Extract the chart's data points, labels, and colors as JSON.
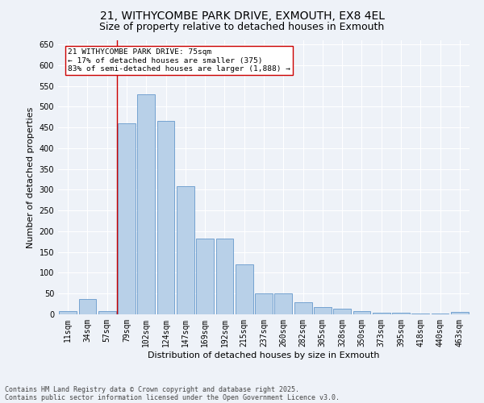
{
  "title": "21, WITHYCOMBE PARK DRIVE, EXMOUTH, EX8 4EL",
  "subtitle": "Size of property relative to detached houses in Exmouth",
  "xlabel": "Distribution of detached houses by size in Exmouth",
  "ylabel": "Number of detached properties",
  "categories": [
    "11sqm",
    "34sqm",
    "57sqm",
    "79sqm",
    "102sqm",
    "124sqm",
    "147sqm",
    "169sqm",
    "192sqm",
    "215sqm",
    "237sqm",
    "260sqm",
    "282sqm",
    "305sqm",
    "328sqm",
    "350sqm",
    "373sqm",
    "395sqm",
    "418sqm",
    "440sqm",
    "463sqm"
  ],
  "values": [
    7,
    37,
    8,
    461,
    530,
    466,
    308,
    183,
    183,
    120,
    50,
    50,
    30,
    18,
    14,
    8,
    3,
    3,
    2,
    2,
    5
  ],
  "bar_color": "#b8d0e8",
  "bar_edge_color": "#6699cc",
  "background_color": "#eef2f8",
  "grid_color": "#ffffff",
  "vline_color": "#cc0000",
  "vline_index": 2.5,
  "annotation_text": "21 WITHYCOMBE PARK DRIVE: 75sqm\n← 17% of detached houses are smaller (375)\n83% of semi-detached houses are larger (1,888) →",
  "annotation_box_facecolor": "#ffffff",
  "annotation_box_edgecolor": "#cc0000",
  "footnote_line1": "Contains HM Land Registry data © Crown copyright and database right 2025.",
  "footnote_line2": "Contains public sector information licensed under the Open Government Licence v3.0.",
  "ylim": [
    0,
    660
  ],
  "yticks": [
    0,
    50,
    100,
    150,
    200,
    250,
    300,
    350,
    400,
    450,
    500,
    550,
    600,
    650
  ],
  "title_fontsize": 10,
  "subtitle_fontsize": 9,
  "axis_label_fontsize": 8,
  "tick_fontsize": 7,
  "annotation_fontsize": 6.8,
  "footnote_fontsize": 6
}
